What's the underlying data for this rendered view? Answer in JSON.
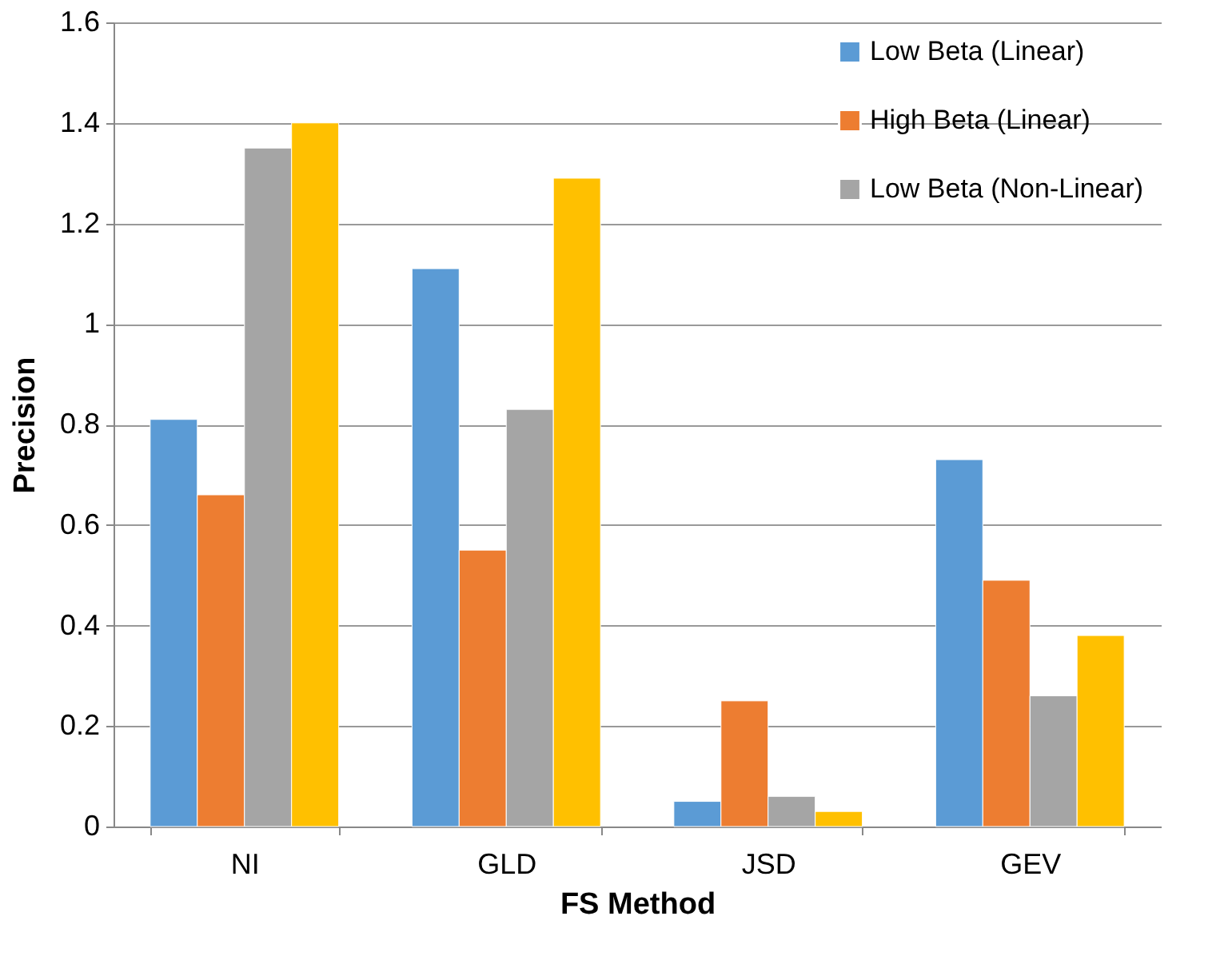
{
  "chart_data": {
    "type": "bar",
    "xlabel": "FS Method",
    "ylabel": "Precision",
    "categories": [
      "NI",
      "GLD",
      "JSD",
      "GEV"
    ],
    "series": [
      {
        "name": "Low Beta (Linear)",
        "color": "#5b9bd5",
        "values": [
          0.81,
          1.11,
          0.05,
          0.73
        ]
      },
      {
        "name": "High Beta (Linear)",
        "color": "#ed7d31",
        "values": [
          0.66,
          0.55,
          0.25,
          0.49
        ]
      },
      {
        "name": "Low Beta (Non-Linear)",
        "color": "#a5a5a5",
        "values": [
          1.35,
          0.83,
          0.06,
          0.26
        ]
      },
      {
        "color": "#ffc000",
        "values": [
          1.4,
          1.29,
          0.03,
          0.38
        ]
      }
    ],
    "ylim": [
      0,
      1.6
    ],
    "yticks": [
      0,
      0.2,
      0.4,
      0.6,
      0.8,
      1,
      1.2,
      1.4,
      1.6
    ],
    "grid": "y",
    "legend": "top right"
  }
}
